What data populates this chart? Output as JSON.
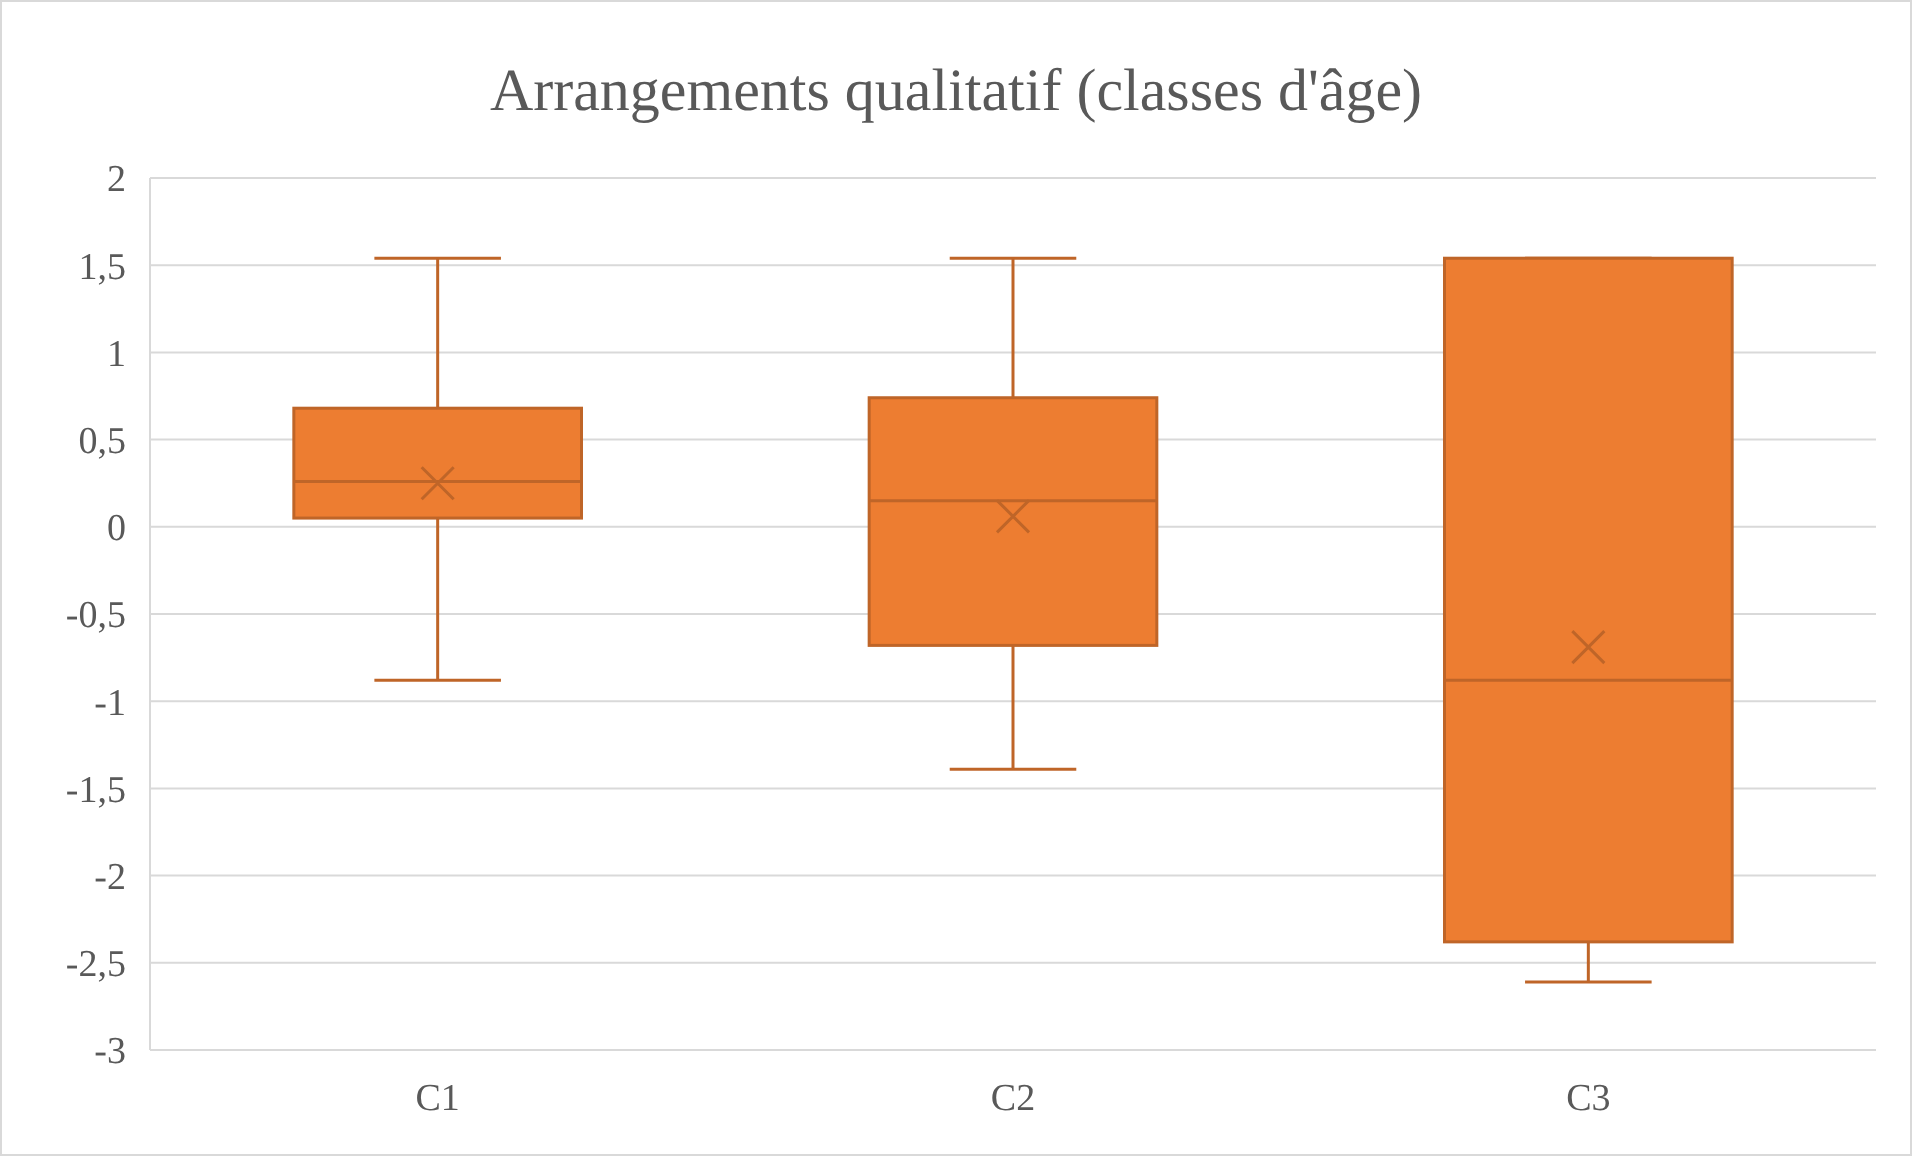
{
  "chart_data": {
    "type": "box",
    "title": "Arrangements  qualitatif (classes d'âge)",
    "categories": [
      "C1",
      "C2",
      "C3"
    ],
    "series": [
      {
        "color": "#ed7d31",
        "boxes": [
          {
            "low": -0.88,
            "q1": 0.05,
            "median": 0.26,
            "q3": 0.68,
            "high": 1.54,
            "mean": 0.25
          },
          {
            "low": -1.39,
            "q1": -0.68,
            "median": 0.15,
            "q3": 0.74,
            "high": 1.54,
            "mean": 0.06
          },
          {
            "low": -2.61,
            "q1": -2.38,
            "median": -0.88,
            "q3": 1.54,
            "high": 1.54,
            "mean": -0.69
          }
        ]
      }
    ],
    "ylim": [
      -3,
      2
    ],
    "yticks": [
      -3,
      {
        "value": -2.5,
        "label": "-2,5"
      },
      -2,
      {
        "value": -1.5,
        "label": "-1,5"
      },
      -1,
      {
        "value": -0.5,
        "label": "-0,5"
      },
      0,
      {
        "value": 0.5,
        "label": "0,5"
      },
      1,
      {
        "value": 1.5,
        "label": "1,5"
      },
      2
    ],
    "grid": "y"
  }
}
